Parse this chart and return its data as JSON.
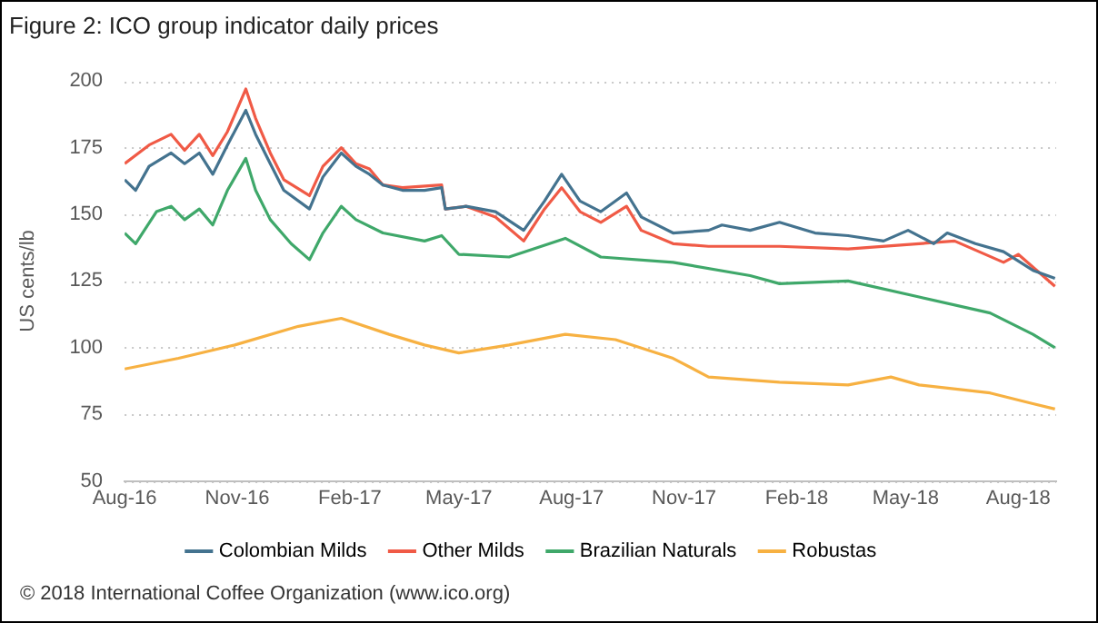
{
  "chart_data": {
    "type": "line",
    "title": "Figure 2: ICO group indicator daily prices",
    "ylabel": "US cents/lb",
    "annotations": [
      "© 2018 International Coffee Organization (www.ico.org)"
    ],
    "xlim": [
      "2016-08-01",
      "2018-09-01"
    ],
    "xticks": [
      {
        "value": "2016-08-01",
        "label": "Aug-16"
      },
      {
        "value": "2016-11-01",
        "label": "Nov-16"
      },
      {
        "value": "2017-02-01",
        "label": "Feb-17"
      },
      {
        "value": "2017-05-01",
        "label": "May-17"
      },
      {
        "value": "2017-08-01",
        "label": "Aug-17"
      },
      {
        "value": "2017-11-01",
        "label": "Nov-17"
      },
      {
        "value": "2018-02-01",
        "label": "Feb-18"
      },
      {
        "value": "2018-05-01",
        "label": "May-18"
      },
      {
        "value": "2018-08-01",
        "label": "Aug-18"
      }
    ],
    "ylim": [
      50,
      200
    ],
    "yticks": [
      50,
      75,
      100,
      125,
      150,
      175,
      200
    ],
    "grid": "y",
    "legend": "bottom",
    "marker": "none",
    "line_style": "solid",
    "series": [
      {
        "name": "Colombian Milds",
        "color": "#44738f",
        "x": [
          "2016-08-01",
          "2016-08-10",
          "2016-08-21",
          "2016-09-08",
          "2016-09-19",
          "2016-10-01",
          "2016-10-12",
          "2016-10-24",
          "2016-11-08",
          "2016-11-16",
          "2016-11-28",
          "2016-12-09",
          "2016-12-30",
          "2017-01-10",
          "2017-01-25",
          "2017-02-06",
          "2017-02-17",
          "2017-02-28",
          "2017-03-16",
          "2017-04-03",
          "2017-04-17",
          "2017-04-20",
          "2017-05-07",
          "2017-05-31",
          "2017-06-23",
          "2017-07-10",
          "2017-07-24",
          "2017-08-08",
          "2017-08-25",
          "2017-09-15",
          "2017-09-27",
          "2017-10-23",
          "2017-11-21",
          "2017-12-02",
          "2017-12-25",
          "2018-01-18",
          "2018-02-16",
          "2018-03-15",
          "2018-04-13",
          "2018-05-03",
          "2018-05-24",
          "2018-06-04",
          "2018-06-27",
          "2018-07-20",
          "2018-08-13",
          "2018-08-31"
        ],
        "values": [
          163,
          159,
          168,
          173,
          169,
          173,
          165,
          176,
          189,
          180,
          169,
          159,
          152,
          164,
          173,
          168,
          165,
          161,
          159,
          159,
          160,
          152,
          153,
          151,
          144,
          155,
          165,
          155,
          151,
          158,
          149,
          143,
          144,
          146,
          144,
          147,
          143,
          142,
          140,
          144,
          139,
          143,
          139,
          136,
          129,
          126
        ]
      },
      {
        "name": "Other Milds",
        "color": "#f05a46",
        "x": [
          "2016-08-01",
          "2016-08-21",
          "2016-09-08",
          "2016-09-19",
          "2016-10-01",
          "2016-10-12",
          "2016-10-24",
          "2016-11-08",
          "2016-11-16",
          "2016-11-28",
          "2016-12-09",
          "2016-12-30",
          "2017-01-10",
          "2017-01-25",
          "2017-02-06",
          "2017-02-17",
          "2017-02-28",
          "2017-03-16",
          "2017-04-17",
          "2017-04-20",
          "2017-05-07",
          "2017-05-31",
          "2017-06-23",
          "2017-07-10",
          "2017-07-24",
          "2017-08-08",
          "2017-08-25",
          "2017-09-15",
          "2017-09-27",
          "2017-10-23",
          "2017-11-21",
          "2018-01-18",
          "2018-03-15",
          "2018-05-12",
          "2018-06-10",
          "2018-07-20",
          "2018-08-01",
          "2018-08-31"
        ],
        "values": [
          169,
          176,
          180,
          174,
          180,
          172,
          181,
          197,
          186,
          173,
          163,
          157,
          168,
          175,
          169,
          167,
          161,
          160,
          161,
          152,
          153,
          149,
          140,
          152,
          160,
          151,
          147,
          153,
          144,
          139,
          138,
          138,
          137,
          139,
          140,
          132,
          135,
          123
        ]
      },
      {
        "name": "Brazilian Naturals",
        "color": "#3fa86a",
        "x": [
          "2016-08-01",
          "2016-08-10",
          "2016-08-27",
          "2016-09-08",
          "2016-09-19",
          "2016-10-01",
          "2016-10-12",
          "2016-10-24",
          "2016-11-08",
          "2016-11-16",
          "2016-11-28",
          "2016-12-15",
          "2016-12-30",
          "2017-01-10",
          "2017-01-25",
          "2017-02-06",
          "2017-02-28",
          "2017-04-03",
          "2017-04-17",
          "2017-05-01",
          "2017-06-11",
          "2017-07-27",
          "2017-08-25",
          "2017-10-23",
          "2017-12-25",
          "2018-01-18",
          "2018-03-15",
          "2018-05-12",
          "2018-07-09",
          "2018-08-13",
          "2018-08-31"
        ],
        "values": [
          143,
          139,
          151,
          153,
          148,
          152,
          146,
          159,
          171,
          159,
          148,
          139,
          133,
          143,
          153,
          148,
          143,
          140,
          142,
          135,
          134,
          141,
          134,
          132,
          127,
          124,
          125,
          119,
          113,
          105,
          100
        ]
      },
      {
        "name": "Robustas",
        "color": "#f7b142",
        "x": [
          "2016-08-01",
          "2016-09-14",
          "2016-10-30",
          "2016-12-21",
          "2017-01-25",
          "2017-03-05",
          "2017-04-03",
          "2017-05-01",
          "2017-06-11",
          "2017-07-27",
          "2017-09-06",
          "2017-10-23",
          "2017-11-21",
          "2018-01-18",
          "2018-03-15",
          "2018-04-19",
          "2018-05-12",
          "2018-07-09",
          "2018-08-13",
          "2018-08-31"
        ],
        "values": [
          92,
          96,
          101,
          108,
          111,
          105,
          101,
          98,
          101,
          105,
          103,
          96,
          89,
          87,
          86,
          89,
          86,
          83,
          79,
          77
        ]
      }
    ]
  }
}
